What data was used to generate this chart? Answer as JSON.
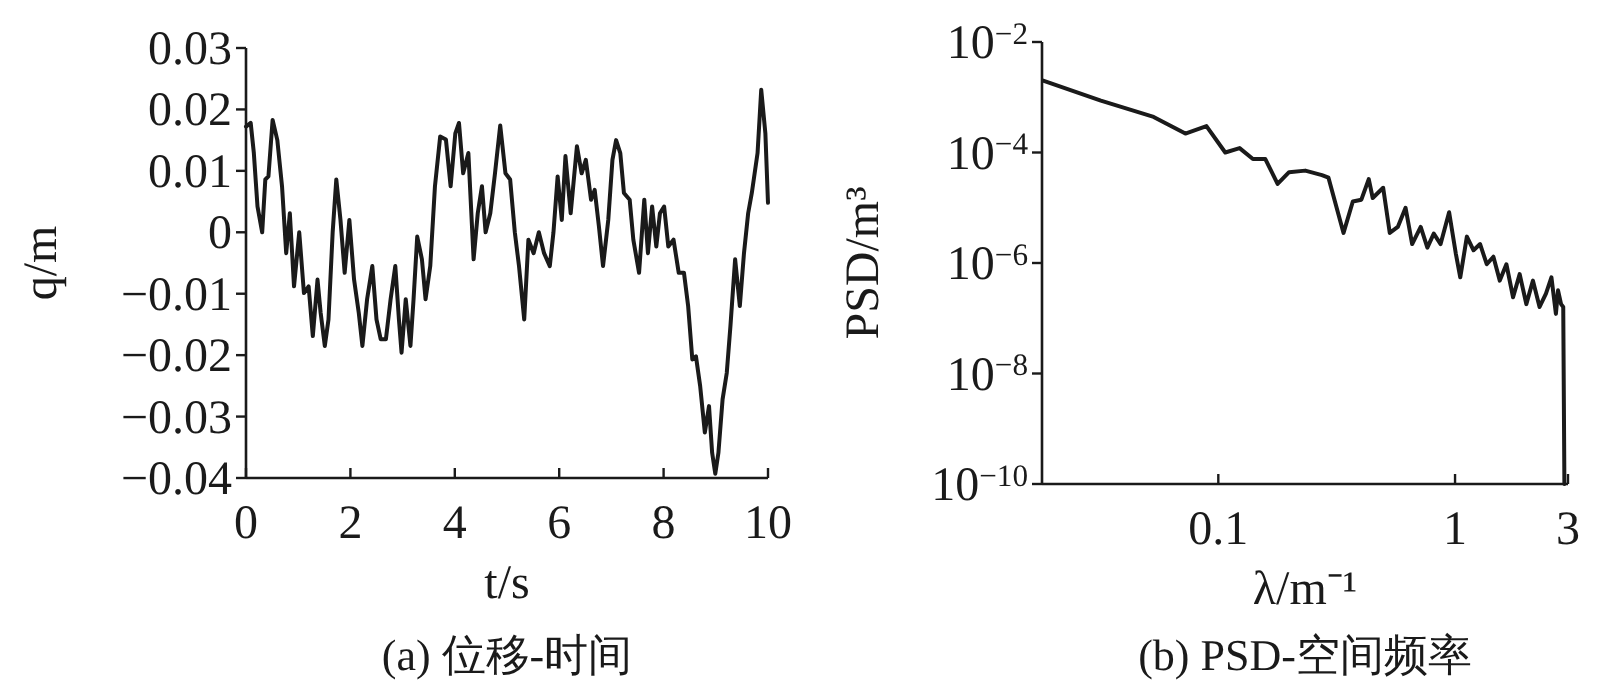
{
  "chart_data": [
    {
      "type": "line",
      "title": "(a) 位移-时间",
      "xlabel": "t/s",
      "ylabel": "q/m",
      "color": "#1a1a1a",
      "xlim": [
        0,
        10
      ],
      "ylim": [
        -0.04,
        0.03
      ],
      "xticks": [
        0,
        2,
        4,
        6,
        8,
        10
      ],
      "yticks": [
        0.03,
        0.02,
        0.01,
        0,
        {
          "value": -0.01,
          "label": "−0.01"
        },
        {
          "value": -0.02,
          "label": "−0.02"
        },
        {
          "value": -0.03,
          "label": "−0.03"
        },
        {
          "value": -0.04,
          "label": "−0.04"
        }
      ],
      "x": [
        0,
        0.09,
        0.15,
        0.22,
        0.31,
        0.37,
        0.43,
        0.51,
        0.6,
        0.69,
        0.77,
        0.84,
        0.92,
        1.02,
        1.11,
        1.2,
        1.28,
        1.37,
        1.43,
        1.51,
        1.58,
        1.66,
        1.73,
        1.81,
        1.89,
        1.98,
        2.07,
        2.16,
        2.23,
        2.32,
        2.42,
        2.5,
        2.58,
        2.68,
        2.77,
        2.86,
        2.93,
        2.98,
        3.06,
        3.15,
        3.21,
        3.28,
        3.37,
        3.44,
        3.53,
        3.62,
        3.72,
        3.83,
        3.92,
        4.01,
        4.08,
        4.16,
        4.26,
        4.36,
        4.44,
        4.52,
        4.59,
        4.68,
        4.77,
        4.87,
        4.97,
        5.06,
        5.15,
        5.23,
        5.33,
        5.41,
        5.51,
        5.61,
        5.71,
        5.82,
        5.89,
        5.97,
        6.05,
        6.12,
        6.22,
        6.34,
        6.43,
        6.51,
        6.61,
        6.68,
        6.76,
        6.84,
        6.94,
        7.02,
        7.09,
        7.17,
        7.24,
        7.35,
        7.42,
        7.53,
        7.63,
        7.7,
        7.78,
        7.86,
        7.93,
        8.01,
        8.09,
        8.19,
        8.29,
        8.39,
        8.47,
        8.55,
        8.62,
        8.7,
        8.79,
        8.87,
        8.93,
        8.99,
        9.05,
        9.13,
        9.21,
        9.28,
        9.37,
        9.46,
        9.54,
        9.62,
        9.69,
        9.8,
        9.87,
        9.95,
        10
      ],
      "values": [
        0.0172,
        0.0178,
        0.0129,
        0.0042,
        0,
        0.0086,
        0.0091,
        0.0183,
        0.015,
        0.0075,
        -0.0034,
        0.0031,
        -0.0088,
        0,
        -0.0099,
        -0.0088,
        -0.0169,
        -0.0077,
        -0.0131,
        -0.0185,
        -0.0142,
        0,
        0.0086,
        0.002,
        -0.0066,
        0.002,
        -0.0077,
        -0.0131,
        -0.0185,
        -0.0109,
        -0.0055,
        -0.0142,
        -0.0174,
        -0.0174,
        -0.0109,
        -0.0055,
        -0.0142,
        -0.0196,
        -0.0109,
        -0.0185,
        -0.0109,
        -0.0007,
        -0.0044,
        -0.0109,
        -0.0055,
        0.0075,
        0.0156,
        0.0151,
        0.0075,
        0.0161,
        0.0178,
        0.0096,
        0.0129,
        -0.0044,
        0.0031,
        0.0075,
        0,
        0.0031,
        0.0096,
        0.0174,
        0.0096,
        0.0086,
        0,
        -0.0055,
        -0.0142,
        -0.0012,
        -0.0034,
        0,
        -0.0034,
        -0.0055,
        0,
        0.0091,
        0.002,
        0.0124,
        0.0031,
        0.014,
        0.0096,
        0.0118,
        0.0053,
        0.0069,
        0.001,
        -0.0055,
        0.002,
        0.0118,
        0.015,
        0.0129,
        0.0064,
        0.0053,
        -0.0012,
        -0.0066,
        0.0053,
        -0.0034,
        0.0042,
        -0.0023,
        0.0031,
        0.0042,
        -0.0023,
        -0.0012,
        -0.0066,
        -0.0066,
        -0.012,
        -0.0207,
        -0.0202,
        -0.025,
        -0.0326,
        -0.0283,
        -0.0359,
        -0.0393,
        -0.0359,
        -0.0272,
        -0.0229,
        -0.0153,
        -0.0044,
        -0.012,
        -0.0034,
        0.0031,
        0.0064,
        0.0129,
        0.0232,
        0.0161,
        0.0048
      ]
    },
    {
      "type": "line",
      "title": "(b) PSD-空间频率",
      "xlabel": "λ/m⁻¹",
      "ylabel": "PSD/m³",
      "color": "#1a1a1a",
      "log": "xy",
      "xlim": [
        0.018,
        3
      ],
      "ylim": [
        1e-10,
        0.01
      ],
      "xticks": [
        0.1,
        1,
        3
      ],
      "yticks": [
        {
          "value": 0.01,
          "label": "10$^{−2}$"
        },
        {
          "value": 0.0001,
          "label": "10$^{−4}$"
        },
        {
          "value": 1e-06,
          "label": "10$^{−6}$"
        },
        {
          "value": 1e-08,
          "label": "10$^{−8}$"
        },
        {
          "value": 1e-10,
          "label": "10$^{−10}$"
        }
      ],
      "x": [
        0.0182,
        0.0319,
        0.0533,
        0.0726,
        0.0891,
        0.107,
        0.123,
        0.14,
        0.158,
        0.178,
        0.199,
        0.233,
        0.274,
        0.292,
        0.338,
        0.37,
        0.402,
        0.432,
        0.449,
        0.497,
        0.53,
        0.573,
        0.618,
        0.659,
        0.716,
        0.764,
        0.813,
        0.869,
        0.944,
        1.007,
        1.052,
        1.122,
        1.197,
        1.276,
        1.361,
        1.452,
        1.545,
        1.648,
        1.758,
        1.875,
        2.0,
        2.133,
        2.275,
        2.421,
        2.553,
        2.667,
        2.723,
        2.805,
        2.864,
        2.897
      ],
      "values": [
        0.002,
        0.00087,
        0.00044,
        0.00022,
        0.0003,
        0.0001,
        0.00012,
        7.6e-05,
        7.6e-05,
        2.7e-05,
        4.4e-05,
        4.7e-05,
        3.9e-05,
        3.5e-05,
        3.5e-06,
        1.3e-05,
        1.4e-05,
        3.3e-05,
        1.5e-05,
        2.3e-05,
        3.5e-06,
        4.5e-06,
        1e-05,
        2.2e-06,
        4.5e-06,
        1.9e-06,
        3.4e-06,
        2.2e-06,
        8.3e-06,
        1.5e-06,
        5.5e-07,
        3e-06,
        1.7e-06,
        2.2e-06,
        9.5e-07,
        1.3e-06,
        4.8e-07,
        9.5e-07,
        2.4e-07,
        6.3e-07,
        1.8e-07,
        4.8e-07,
        1.6e-07,
        2.8e-07,
        5.5e-07,
        1.2e-07,
        3.2e-07,
        1.8e-07,
        1.6e-07,
        1e-10
      ]
    }
  ]
}
